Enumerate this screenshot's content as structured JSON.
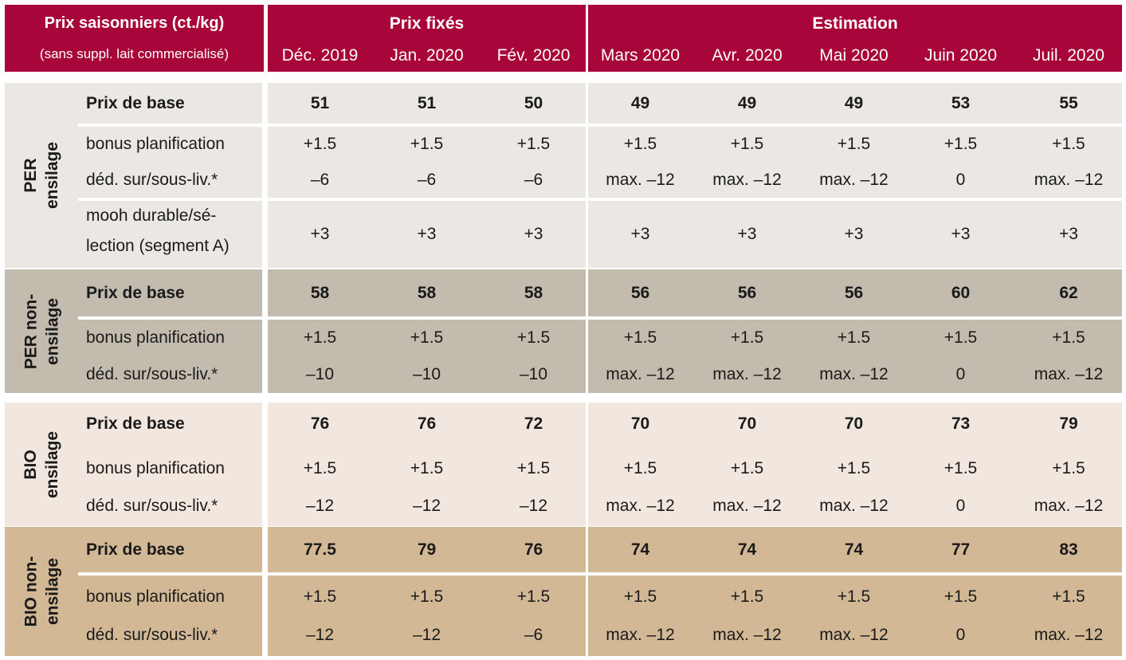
{
  "header": {
    "title": "Prix saisonniers (ct./kg)",
    "subtitle": "(sans suppl. lait commercialisé)",
    "group_fixed": "Prix fixés",
    "group_estimate": "Estimation",
    "months": [
      "Déc. 2019",
      "Jan. 2020",
      "Fév. 2020",
      "Mars 2020",
      "Avr. 2020",
      "Mai 2020",
      "Juin 2020",
      "Juil. 2020"
    ]
  },
  "sections": [
    {
      "name_line1": "PER",
      "name_line2": "ensilage",
      "bg": "#ebe8e3",
      "rows": [
        {
          "label": "Prix de base",
          "values": [
            "51",
            "51",
            "50",
            "49",
            "49",
            "49",
            "53",
            "55"
          ]
        },
        {
          "label": "bonus planification",
          "values": [
            "+1.5",
            "+1.5",
            "+1.5",
            "+1.5",
            "+1.5",
            "+1.5",
            "+1.5",
            "+1.5"
          ]
        },
        {
          "label": "déd. sur/sous-liv.*",
          "values": [
            "–6",
            "–6",
            "–6",
            "max. –12",
            "max. –12",
            "max. –12",
            "0",
            "max. –12"
          ]
        },
        {
          "label_line1": "mooh durable/sé-",
          "label_line2": "lection (segment A)",
          "values": [
            "+3",
            "+3",
            "+3",
            "+3",
            "+3",
            "+3",
            "+3",
            "+3"
          ]
        }
      ]
    },
    {
      "name_line1": "PER non-",
      "name_line2": "ensilage",
      "bg": "#c2bbae",
      "rows": [
        {
          "label": "Prix de base",
          "values": [
            "58",
            "58",
            "58",
            "56",
            "56",
            "56",
            "60",
            "62"
          ]
        },
        {
          "label": "bonus planification",
          "values": [
            "+1.5",
            "+1.5",
            "+1.5",
            "+1.5",
            "+1.5",
            "+1.5",
            "+1.5",
            "+1.5"
          ]
        },
        {
          "label": "déd. sur/sous-liv.*",
          "values": [
            "–10",
            "–10",
            "–10",
            "max. –12",
            "max. –12",
            "max. –12",
            "0",
            "max. –12"
          ]
        }
      ]
    },
    {
      "name_line1": "BIO",
      "name_line2": "ensilage",
      "bg": "#f2e7de",
      "rows": [
        {
          "label": "Prix de base",
          "values": [
            "76",
            "76",
            "72",
            "70",
            "70",
            "70",
            "73",
            "79"
          ]
        },
        {
          "label": "bonus planification",
          "values": [
            "+1.5",
            "+1.5",
            "+1.5",
            "+1.5",
            "+1.5",
            "+1.5",
            "+1.5",
            "+1.5"
          ]
        },
        {
          "label": "déd. sur/sous-liv.*",
          "values": [
            "–12",
            "–12",
            "–12",
            "max. –12",
            "max. –12",
            "max. –12",
            "0",
            "max. –12"
          ]
        }
      ]
    },
    {
      "name_line1": "BIO non-",
      "name_line2": "ensilage",
      "bg": "#d3b896",
      "rows": [
        {
          "label": "Prix de base",
          "values": [
            "77.5",
            "79",
            "76",
            "74",
            "74",
            "74",
            "77",
            "83"
          ]
        },
        {
          "label": "bonus planification",
          "values": [
            "+1.5",
            "+1.5",
            "+1.5",
            "+1.5",
            "+1.5",
            "+1.5",
            "+1.5",
            "+1.5"
          ]
        },
        {
          "label": "déd. sur/sous-liv.*",
          "values": [
            "–12",
            "–12",
            "–6",
            "max. –12",
            "max. –12",
            "max. –12",
            "0",
            "max. –12"
          ]
        }
      ]
    }
  ]
}
